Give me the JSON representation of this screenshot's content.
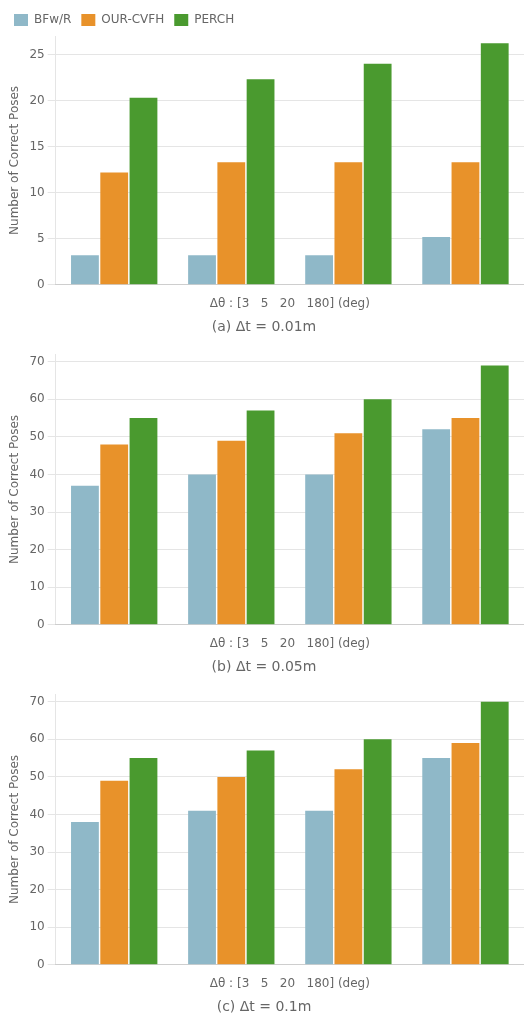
{
  "chart_data": [
    {
      "type": "bar",
      "title": "(a) Δt = 0.01m",
      "xlabel": "Δθ : [3   5   20   180] (deg)",
      "ylabel": "Number of Correct Poses",
      "categories": [
        null,
        null,
        null,
        null
      ],
      "series": [
        {
          "name": "BFw/R",
          "color": "#8fb8c8",
          "values": [
            3.2,
            3.2,
            3.2,
            5.2
          ]
        },
        {
          "name": "OUR-CVFH",
          "color": "#e8922a",
          "values": [
            12.2,
            13.3,
            13.3,
            13.3
          ]
        },
        {
          "name": "PERCH",
          "color": "#4a9a2f",
          "values": [
            20.3,
            22.3,
            24.0,
            26.2
          ]
        }
      ],
      "ylim": [
        0,
        27
      ],
      "yticks": [
        0,
        5,
        10,
        15,
        20,
        25
      ],
      "grid": true,
      "legend": "upper left",
      "tick_labels": "y"
    },
    {
      "type": "bar",
      "title": "(b) Δt = 0.05m",
      "xlabel": "Δθ : [3   5   20   180] (deg)",
      "ylabel": "Number of Correct Poses",
      "categories": [
        null,
        null,
        null,
        null
      ],
      "series": [
        {
          "name": "BFw/R",
          "color": "#8fb8c8",
          "values": [
            37,
            40,
            40,
            52
          ]
        },
        {
          "name": "OUR-CVFH",
          "color": "#e8922a",
          "values": [
            48,
            49,
            51,
            55
          ]
        },
        {
          "name": "PERCH",
          "color": "#4a9a2f",
          "values": [
            55,
            57,
            60,
            69
          ]
        }
      ],
      "ylim": [
        0,
        72
      ],
      "yticks": [
        0,
        10,
        20,
        30,
        40,
        50,
        60,
        70
      ],
      "grid": true,
      "tick_labels": "y"
    },
    {
      "type": "bar",
      "title": "(c) Δt = 0.1m",
      "xlabel": "Δθ : [3   5   20   180] (deg)",
      "ylabel": "Number of Correct Poses",
      "categories": [
        null,
        null,
        null,
        null
      ],
      "series": [
        {
          "name": "BFw/R",
          "color": "#8fb8c8",
          "values": [
            38,
            41,
            41,
            55
          ]
        },
        {
          "name": "OUR-CVFH",
          "color": "#e8922a",
          "values": [
            49,
            50,
            52,
            59
          ]
        },
        {
          "name": "PERCH",
          "color": "#4a9a2f",
          "values": [
            55,
            57,
            60,
            70
          ]
        }
      ],
      "ylim": [
        0,
        72
      ],
      "yticks": [
        0,
        10,
        20,
        30,
        40,
        50,
        60,
        70
      ],
      "grid": true,
      "tick_labels": "y"
    }
  ]
}
